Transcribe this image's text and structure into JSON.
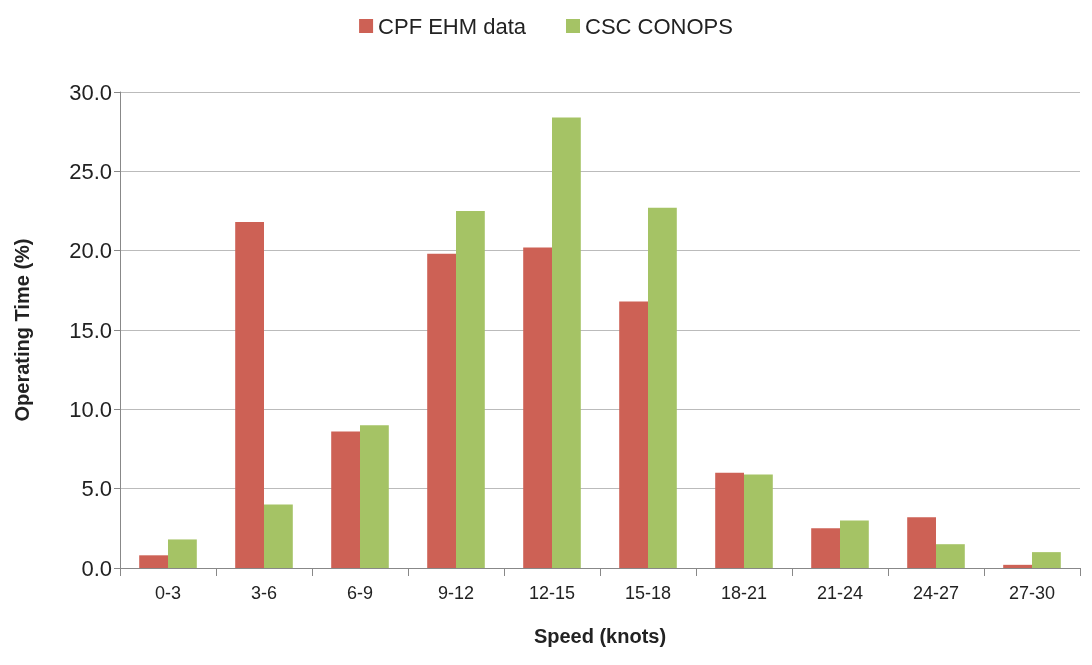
{
  "chart_data": {
    "type": "bar",
    "xlabel": "Speed (knots)",
    "ylabel": "Operating Time (%)",
    "categories": [
      "0-3",
      "3-6",
      "6-9",
      "9-12",
      "12-15",
      "15-18",
      "18-21",
      "21-24",
      "24-27",
      "27-30"
    ],
    "series": [
      {
        "name": "CPF EHM data",
        "color": "#cd6155",
        "values": [
          0.8,
          21.8,
          8.6,
          19.8,
          20.2,
          16.8,
          6.0,
          2.5,
          3.2,
          0.2
        ]
      },
      {
        "name": "CSC CONOPS",
        "color": "#a5c365",
        "values": [
          1.8,
          4.0,
          9.0,
          22.5,
          28.4,
          22.7,
          5.9,
          3.0,
          1.5,
          1.0
        ]
      }
    ],
    "ylim": [
      0,
      30
    ],
    "yticks": [
      {
        "value": 0,
        "label": "0.0"
      },
      {
        "value": 5,
        "label": "5.0"
      },
      {
        "value": 10,
        "label": "10.0"
      },
      {
        "value": 15,
        "label": "15.0"
      },
      {
        "value": 20,
        "label": "20.0"
      },
      {
        "value": 25,
        "label": "25.0"
      },
      {
        "value": 30,
        "label": "30.0"
      }
    ],
    "grid": "y",
    "legend": "top"
  }
}
